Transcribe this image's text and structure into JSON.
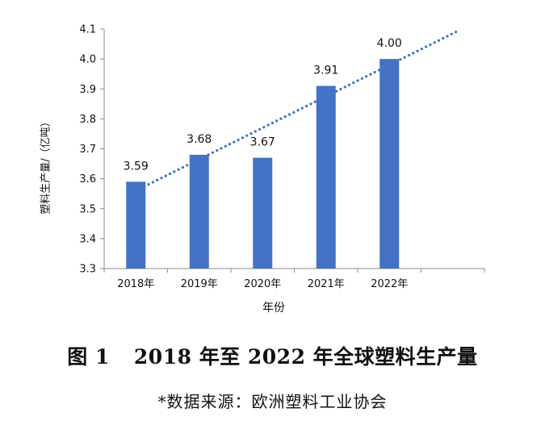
{
  "chart_data": {
    "type": "bar",
    "categories": [
      "2018年",
      "2019年",
      "2020年",
      "2021年",
      "2022年"
    ],
    "values": [
      3.59,
      3.68,
      3.67,
      3.91,
      4.0
    ],
    "data_labels": [
      "3.59",
      "3.68",
      "3.67",
      "3.91",
      "4.00"
    ],
    "bar_color": "#4472C4",
    "trendline": {
      "type": "linear",
      "style": "dotted",
      "color": "#4472C4"
    },
    "xlabel": "年份",
    "ylabel": "塑料生产量/（亿吨）",
    "ylim": [
      3.3,
      4.1
    ],
    "yticks": [
      "3.3",
      "3.4",
      "3.5",
      "3.6",
      "3.7",
      "3.8",
      "3.9",
      "4.0",
      "4.1"
    ],
    "grid": false,
    "legend": "none"
  },
  "figure": {
    "number": "图 1",
    "title": "2018 年至 2022 年全球塑料生产量",
    "source": "*数据来源：欧洲塑料工业协会"
  }
}
